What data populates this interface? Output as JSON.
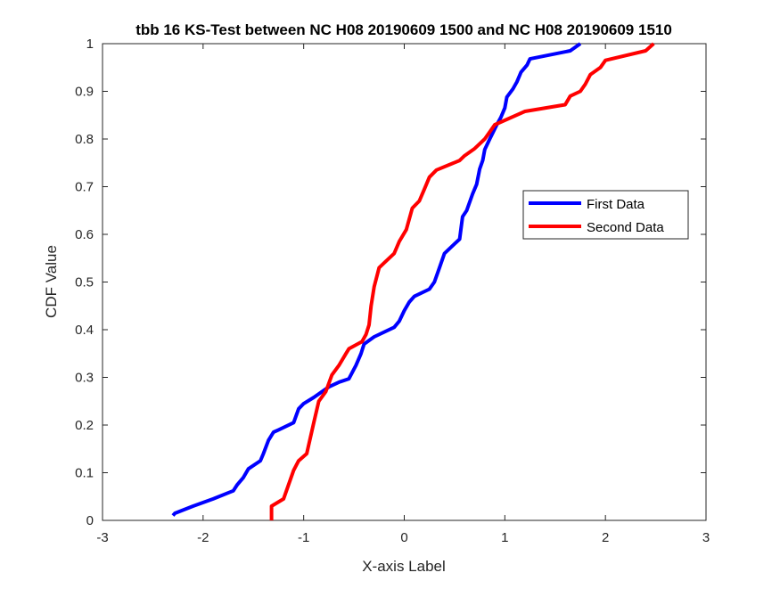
{
  "chart_data": {
    "type": "line",
    "title": "tbb 16 KS-Test between NC H08 20190609 1500 and NC H08 20190609 1510",
    "xlabel": "X-axis Label",
    "ylabel": "CDF Value",
    "xlim": [
      -3,
      3
    ],
    "ylim": [
      0,
      1
    ],
    "x_ticks": [
      "-3",
      "-2",
      "-1",
      "0",
      "1",
      "2",
      "3"
    ],
    "y_ticks": [
      "0",
      "0.1",
      "0.2",
      "0.3",
      "0.4",
      "0.5",
      "0.6",
      "0.7",
      "0.8",
      "0.9",
      "1"
    ],
    "grid": false,
    "legend_position": "right",
    "series": [
      {
        "name": "First Data",
        "color": "#0000ff",
        "points": [
          [
            -2.3,
            0.01
          ],
          [
            -2.28,
            0.015
          ],
          [
            -2.1,
            0.03
          ],
          [
            -1.9,
            0.045
          ],
          [
            -1.7,
            0.062
          ],
          [
            -1.66,
            0.075
          ],
          [
            -1.6,
            0.09
          ],
          [
            -1.55,
            0.108
          ],
          [
            -1.43,
            0.125
          ],
          [
            -1.4,
            0.14
          ],
          [
            -1.35,
            0.168
          ],
          [
            -1.3,
            0.185
          ],
          [
            -1.25,
            0.19
          ],
          [
            -1.1,
            0.205
          ],
          [
            -1.05,
            0.234
          ],
          [
            -1.0,
            0.245
          ],
          [
            -0.9,
            0.258
          ],
          [
            -0.75,
            0.28
          ],
          [
            -0.65,
            0.29
          ],
          [
            -0.55,
            0.297
          ],
          [
            -0.48,
            0.325
          ],
          [
            -0.43,
            0.35
          ],
          [
            -0.4,
            0.37
          ],
          [
            -0.3,
            0.385
          ],
          [
            -0.1,
            0.405
          ],
          [
            -0.05,
            0.418
          ],
          [
            0.0,
            0.44
          ],
          [
            0.05,
            0.458
          ],
          [
            0.1,
            0.47
          ],
          [
            0.25,
            0.485
          ],
          [
            0.3,
            0.5
          ],
          [
            0.35,
            0.53
          ],
          [
            0.4,
            0.56
          ],
          [
            0.5,
            0.58
          ],
          [
            0.55,
            0.59
          ],
          [
            0.58,
            0.637
          ],
          [
            0.62,
            0.65
          ],
          [
            0.68,
            0.685
          ],
          [
            0.72,
            0.705
          ],
          [
            0.75,
            0.737
          ],
          [
            0.78,
            0.755
          ],
          [
            0.8,
            0.778
          ],
          [
            0.85,
            0.8
          ],
          [
            0.92,
            0.83
          ],
          [
            0.96,
            0.845
          ],
          [
            1.0,
            0.865
          ],
          [
            1.02,
            0.888
          ],
          [
            1.08,
            0.905
          ],
          [
            1.12,
            0.92
          ],
          [
            1.16,
            0.94
          ],
          [
            1.22,
            0.955
          ],
          [
            1.25,
            0.968
          ],
          [
            1.65,
            0.985
          ],
          [
            1.75,
            1.0
          ]
        ]
      },
      {
        "name": "Second Data",
        "color": "#ff0000",
        "points": [
          [
            -1.32,
            0.0
          ],
          [
            -1.32,
            0.03
          ],
          [
            -1.2,
            0.045
          ],
          [
            -1.1,
            0.105
          ],
          [
            -1.05,
            0.125
          ],
          [
            -0.97,
            0.14
          ],
          [
            -0.9,
            0.205
          ],
          [
            -0.85,
            0.25
          ],
          [
            -0.78,
            0.27
          ],
          [
            -0.72,
            0.305
          ],
          [
            -0.65,
            0.325
          ],
          [
            -0.58,
            0.35
          ],
          [
            -0.55,
            0.36
          ],
          [
            -0.42,
            0.375
          ],
          [
            -0.38,
            0.39
          ],
          [
            -0.35,
            0.41
          ],
          [
            -0.33,
            0.45
          ],
          [
            -0.3,
            0.49
          ],
          [
            -0.25,
            0.53
          ],
          [
            -0.2,
            0.54
          ],
          [
            -0.1,
            0.56
          ],
          [
            -0.05,
            0.585
          ],
          [
            0.02,
            0.61
          ],
          [
            0.08,
            0.655
          ],
          [
            0.15,
            0.67
          ],
          [
            0.2,
            0.695
          ],
          [
            0.25,
            0.72
          ],
          [
            0.32,
            0.735
          ],
          [
            0.55,
            0.755
          ],
          [
            0.6,
            0.765
          ],
          [
            0.7,
            0.78
          ],
          [
            0.8,
            0.8
          ],
          [
            0.9,
            0.83
          ],
          [
            1.2,
            0.858
          ],
          [
            1.6,
            0.872
          ],
          [
            1.65,
            0.89
          ],
          [
            1.75,
            0.9
          ],
          [
            1.8,
            0.915
          ],
          [
            1.85,
            0.935
          ],
          [
            1.95,
            0.95
          ],
          [
            2.0,
            0.965
          ],
          [
            2.4,
            0.985
          ],
          [
            2.48,
            1.0
          ]
        ]
      }
    ]
  }
}
